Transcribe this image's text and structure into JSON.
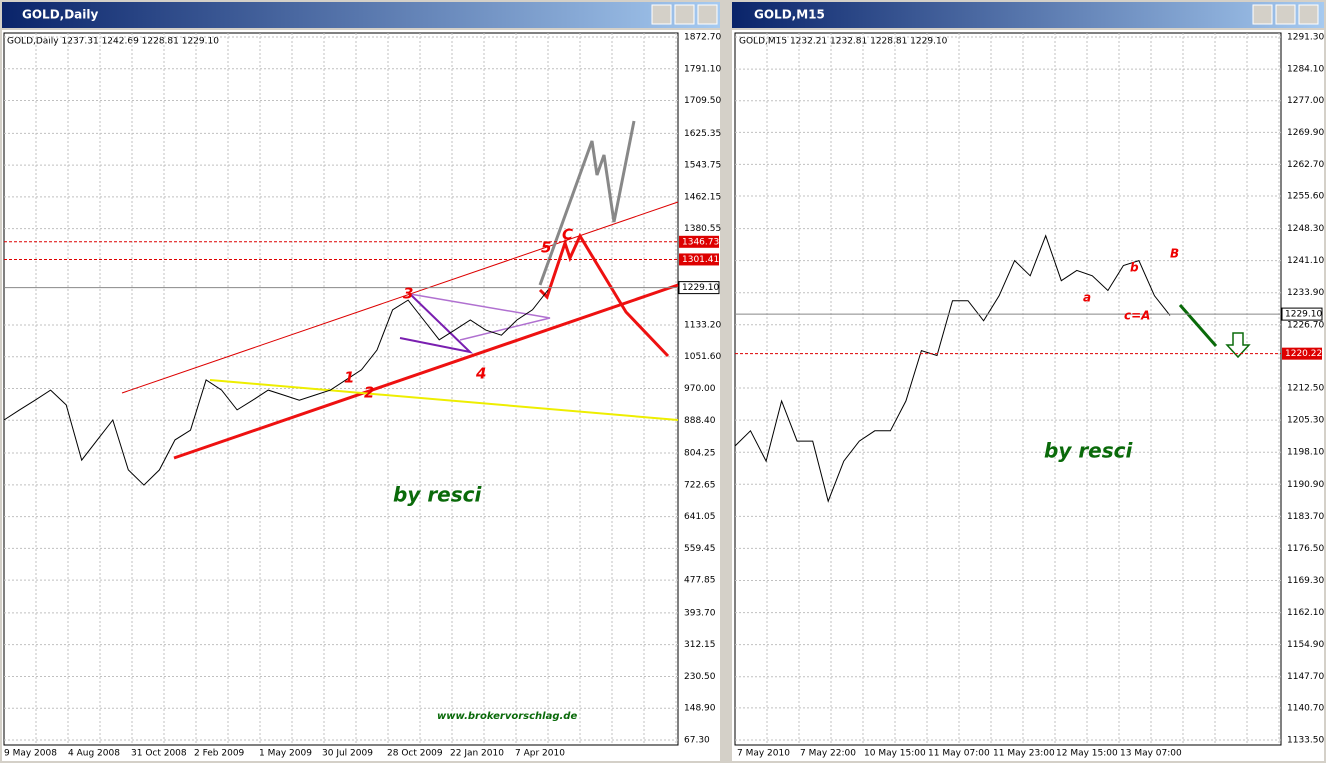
{
  "windows": [
    {
      "title": "GOLD,Daily",
      "header": "GOLD,Daily 1237.31 1242.69 1228.81 1229.10",
      "ylim": [
        67.3,
        1872.7
      ],
      "yticks": [
        {
          "value": 1872.7,
          "label": "1872.70"
        },
        {
          "value": 1791.1,
          "label": "1791.10"
        },
        {
          "value": 1709.5,
          "label": "1709.50"
        },
        1625.35,
        1543.75,
        1462.15,
        1380.55,
        {
          "value": 1133.2,
          "label": "1133.20"
        },
        {
          "value": 1051.6,
          "label": "1051.60"
        },
        {
          "value": 970,
          "label": "970.00"
        },
        {
          "value": 888.4,
          "label": "888.40"
        },
        804.25,
        722.65,
        641.05,
        559.45,
        477.85,
        {
          "value": 393.7,
          "label": "393.70"
        },
        312.15,
        {
          "value": 230.5,
          "label": "230.50"
        },
        {
          "value": 148.9,
          "label": "148.90"
        },
        {
          "value": 67.3,
          "label": "67.30"
        }
      ],
      "x_labels": [
        "9 May 2008",
        "4 Aug 2008",
        "31 Oct 2008",
        "2 Feb 2009",
        "1 May 2009",
        "30 Jul 2009",
        "28 Oct 2009",
        "22 Jan 2010",
        "7 Apr 2010"
      ],
      "price": [
        889,
        915,
        940,
        966,
        928,
        786,
        838,
        889,
        761,
        722,
        761,
        838,
        863,
        992,
        966,
        915,
        940,
        966,
        953,
        940,
        953,
        966,
        992,
        1018,
        1069,
        1172,
        1197,
        1146,
        1095,
        1120,
        1146,
        1120,
        1107,
        1146,
        1172,
        1223
      ],
      "price_labels": [
        1346.73,
        1301.41,
        {
          "value": 1229.1,
          "label": "1229.10"
        }
      ],
      "annotations": [
        "1",
        "2",
        "3",
        "4",
        "5",
        "C"
      ],
      "watermark": "by resci",
      "url": "www.brokervorschlag.de"
    },
    {
      "title": "GOLD,M15",
      "header": "GOLD,M15 1232.21 1232.81 1228.81 1229.10",
      "ylim": [
        1133.5,
        1291.3
      ],
      "yticks": [
        {
          "value": 1291.3,
          "label": "1291.30"
        },
        {
          "value": 1284.1,
          "label": "1284.10"
        },
        {
          "value": 1277,
          "label": "1277.00"
        },
        {
          "value": 1269.9,
          "label": "1269.90"
        },
        {
          "value": 1262.7,
          "label": "1262.70"
        },
        {
          "value": 1255.6,
          "label": "1255.60"
        },
        {
          "value": 1248.3,
          "label": "1248.30"
        },
        {
          "value": 1241.1,
          "label": "1241.10"
        },
        {
          "value": 1233.9,
          "label": "1233.90"
        },
        {
          "value": 1226.7,
          "label": "1226.70"
        },
        {
          "value": 1212.5,
          "label": "1212.50"
        },
        {
          "value": 1205.3,
          "label": "1205.30"
        },
        {
          "value": 1198.1,
          "label": "1198.10"
        },
        {
          "value": 1190.9,
          "label": "1190.90"
        },
        {
          "value": 1183.7,
          "label": "1183.70"
        },
        {
          "value": 1176.5,
          "label": "1176.50"
        },
        {
          "value": 1169.3,
          "label": "1169.30"
        },
        {
          "value": 1162.1,
          "label": "1162.10"
        },
        {
          "value": 1154.9,
          "label": "1154.90"
        },
        {
          "value": 1147.7,
          "label": "1147.70"
        },
        {
          "value": 1140.7,
          "label": "1140.70"
        },
        {
          "value": 1133.5,
          "label": "1133.50"
        }
      ],
      "x_labels": [
        "7 May 2010",
        "7 May 22:00",
        "10 May 15:00",
        "11 May 07:00",
        "11 May 23:00",
        "12 May 15:00",
        "13 May 07:00"
      ],
      "price": [
        1199.5,
        1202.9,
        1196.1,
        1209.6,
        1200.6,
        1200.6,
        1187.1,
        1196.1,
        1200.6,
        1202.9,
        1202.9,
        1209.6,
        1220.9,
        1219.8,
        1232.1,
        1232.1,
        1227.6,
        1233.2,
        1241.1,
        1237.7,
        1246.7,
        1236.6,
        1238.9,
        1237.7,
        1234.4,
        1240.0,
        1241.1,
        1233.2,
        1228.8
      ],
      "price_labels": [
        {
          "value": 1229.1,
          "label": "1229.10"
        },
        1220.22
      ],
      "annotations": [
        "a",
        "b",
        "B",
        "c=A"
      ],
      "watermark": "by resci"
    }
  ]
}
